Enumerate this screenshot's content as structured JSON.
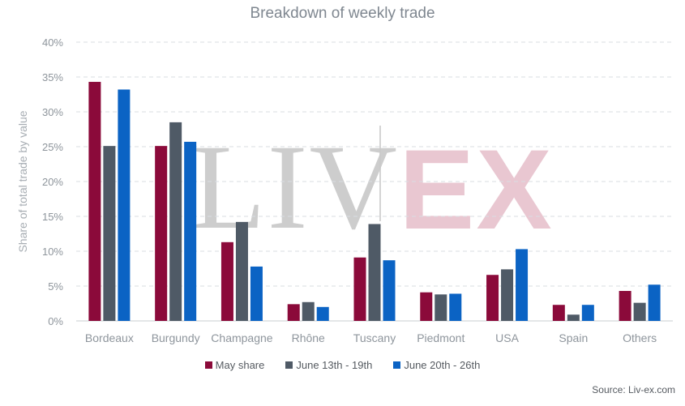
{
  "chart_data": {
    "type": "bar",
    "title": "Breakdown of weekly trade",
    "ylabel": "Share of total trade by value",
    "xlabel": "",
    "categories": [
      "Bordeaux",
      "Burgundy",
      "Champagne",
      "Rhône",
      "Tuscany",
      "Piedmont",
      "USA",
      "Spain",
      "Others"
    ],
    "ylim": [
      0,
      40
    ],
    "yticks": [
      "0%",
      "5%",
      "10%",
      "15%",
      "20%",
      "25%",
      "30%",
      "35%",
      "40%"
    ],
    "grid": true,
    "legend_position": "bottom",
    "series": [
      {
        "name": "May share",
        "color": "#8b0a3a",
        "values": [
          34.3,
          25.1,
          11.3,
          2.4,
          9.1,
          4.1,
          6.6,
          2.3,
          4.3
        ]
      },
      {
        "name": "June 13th - 19th",
        "color": "#4f5a66",
        "values": [
          25.1,
          28.5,
          14.2,
          2.7,
          13.9,
          3.8,
          7.4,
          0.9,
          2.6
        ]
      },
      {
        "name": "June 20th - 26th",
        "color": "#0b63c4",
        "values": [
          33.2,
          25.7,
          7.8,
          2.0,
          8.7,
          3.9,
          10.3,
          2.3,
          5.2
        ]
      }
    ]
  },
  "watermark": {
    "left": "LIV",
    "right": "EX"
  },
  "source": "Source: Liv-ex.com"
}
